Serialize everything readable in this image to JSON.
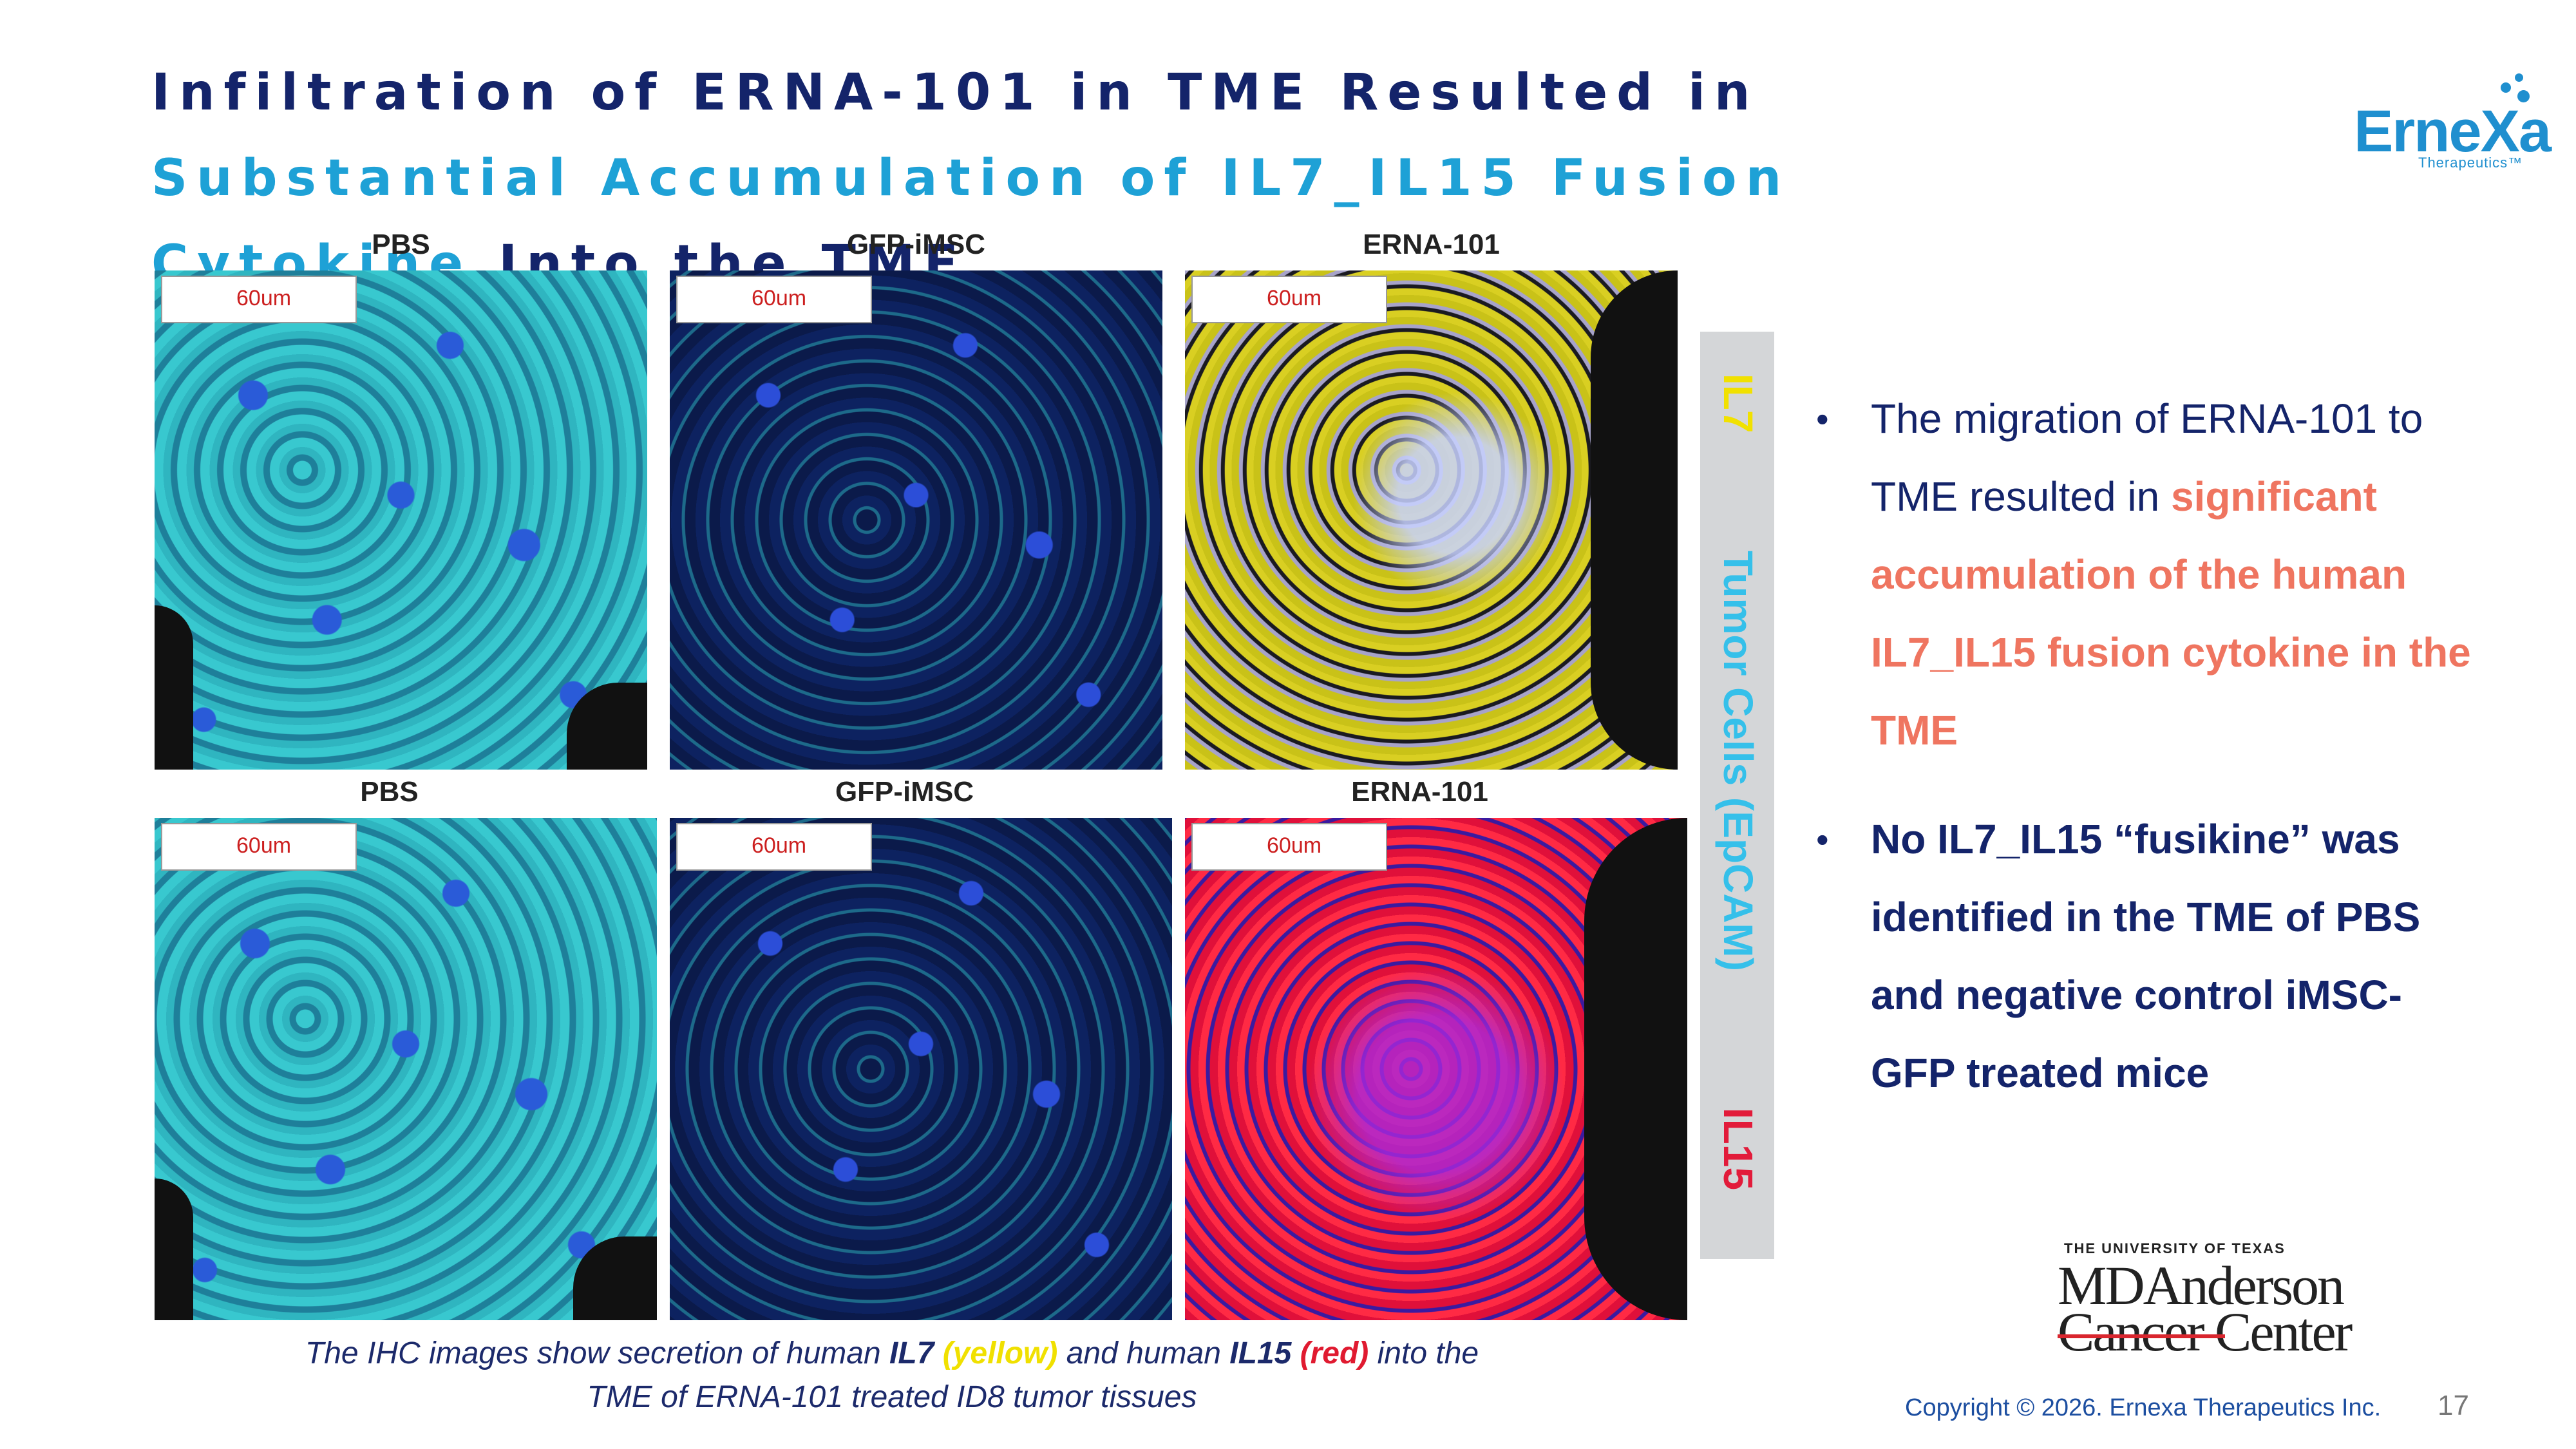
{
  "title": {
    "part1": "Infiltration of ERNA-101 in TME Resulted in ",
    "part2": "Substantial Accumulation of IL7_IL15 Fusion Cytokine",
    "part3": " Into the TME"
  },
  "logo": {
    "wordmark": "ErneXa",
    "tagline": "Therapeutics™",
    "brand_color": "#1f8fcf"
  },
  "figure": {
    "panels": [
      {
        "label": "PBS",
        "scale": "60um"
      },
      {
        "label": "GFP-iMSC",
        "scale": "60um"
      },
      {
        "label": "ERNA-101",
        "scale": "60um"
      },
      {
        "label": "PBS",
        "scale": "60um"
      },
      {
        "label": "GFP-iMSC",
        "scale": "60um"
      },
      {
        "label": "ERNA-101",
        "scale": "60um"
      }
    ],
    "sidebar": {
      "il7": "IL7",
      "tumor": "Tumor Cells (EpCAM)",
      "il15": "IL15"
    },
    "caption": {
      "t1": "The IHC images show secretion of human ",
      "il7": "IL7",
      "yellow": "(yellow)",
      "t2": " and human ",
      "il15": "IL15",
      "red": "(red)",
      "t3": " into the",
      "line2": "TME of ERNA-101 treated ID8 tumor tissues"
    }
  },
  "bullets": [
    {
      "plain": "The migration of ERNA-101 to TME resulted in ",
      "accent": "significant accumulation of the human IL7_IL15 fusion cytokine in the TME"
    },
    {
      "strong": "No IL7_IL15 “fusikine” was identified in the TME of PBS and negative control iMSC-GFP treated mice"
    }
  ],
  "partner": {
    "top": "THE UNIVERSITY OF TEXAS",
    "line1": "MDAnderson",
    "line2": "Cancer Center"
  },
  "footer": {
    "copyright": "Copyright © 2026. Ernexa Therapeutics Inc.",
    "page": "17"
  },
  "colors": {
    "navy": "#14246a",
    "cyan": "#1ea1d6",
    "salmon": "#ef7560",
    "yellow": "#f1e100",
    "red": "#e21b3a"
  }
}
